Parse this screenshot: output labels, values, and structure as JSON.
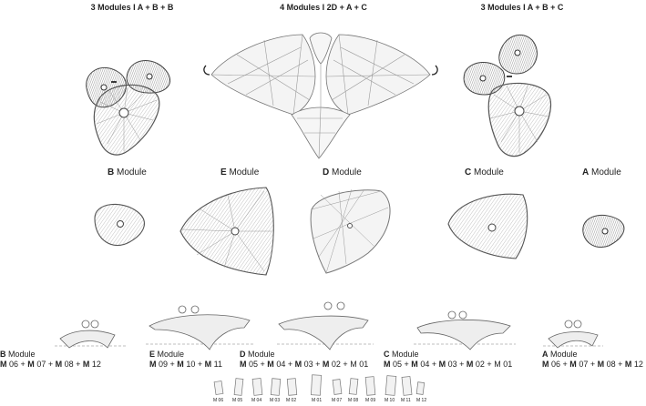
{
  "titles": {
    "left": "3 Modules I A + B + B",
    "center": "4 Modules I 2D + A + C",
    "right": "3 Modules I A + B + C"
  },
  "module_labels": [
    {
      "letter": "B",
      "word": "Module"
    },
    {
      "letter": "E",
      "word": "Module"
    },
    {
      "letter": "D",
      "word": "Module"
    },
    {
      "letter": "C",
      "word": "Module"
    },
    {
      "letter": "A",
      "word": "Module"
    }
  ],
  "elevation_captions": [
    {
      "letter": "B",
      "word": "Module",
      "parts": [
        "M",
        "06",
        "M",
        "07",
        "M",
        "08",
        "M",
        "12"
      ]
    },
    {
      "letter": "E",
      "word": "Module",
      "parts": [
        "M",
        "09",
        "M",
        "10",
        "M",
        "11"
      ]
    },
    {
      "letter": "D",
      "word": "Module",
      "parts": [
        "M",
        "05",
        "M",
        "04",
        "M",
        "03",
        "M",
        "02",
        "M",
        "01"
      ]
    },
    {
      "letter": "C",
      "word": "Module",
      "parts": [
        "M",
        "05",
        "M",
        "04",
        "M",
        "03",
        "M",
        "02",
        "M",
        "01"
      ]
    },
    {
      "letter": "A",
      "word": "Module",
      "parts": [
        "M",
        "06",
        "M",
        "07",
        "M",
        "08",
        "M",
        "12"
      ]
    }
  ],
  "panel_labels": [
    "M 06",
    "M 05",
    "M 04",
    "M 03",
    "M 02",
    "M 01",
    "M 07",
    "M 08",
    "M 09",
    "M 10",
    "M 11",
    "M 12"
  ]
}
